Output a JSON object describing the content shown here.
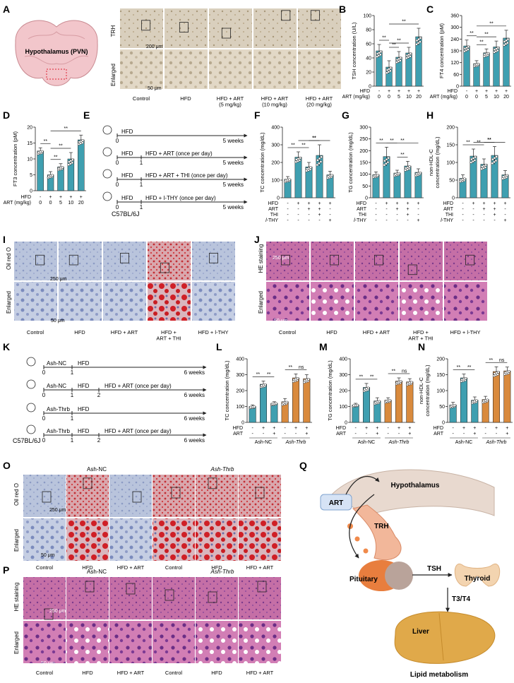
{
  "colors": {
    "teal": "#3f9fb0",
    "orange": "#d98a3d",
    "ink": "#222222",
    "dot": "#ffffff"
  },
  "panels": {
    "A": {
      "letter": "A",
      "brain_label": "Hypothalamus (PVN)",
      "row_labels": [
        "TRH",
        "Enlarged"
      ],
      "scale_top": "200 μm",
      "scale_bottom": "50 μm",
      "groups": [
        "Control",
        "HFD",
        "HFD + ART\n(5 mg/kg)",
        "HFD + ART\n(10 mg/kg)",
        "HFD + ART\n(20 mg/kg)"
      ]
    },
    "E": {
      "letter": "E",
      "strain": "C57BL/6J",
      "rows": [
        {
          "label": "HFD",
          "start": "0",
          "mid": "",
          "end": "5 weeks"
        },
        {
          "label": "HFD + ART (once per day)",
          "pre": "HFD",
          "start": "0",
          "mid": "1",
          "end": "5 weeks"
        },
        {
          "label": "HFD + ART + THI (once per day)",
          "pre": "HFD",
          "start": "0",
          "mid": "1",
          "end": "5 weeks"
        },
        {
          "label": "HFD + l-THY (once per day)",
          "pre": "HFD",
          "start": "0",
          "mid": "1",
          "end": "5 weeks"
        }
      ]
    },
    "I": {
      "letter": "I",
      "row_labels": [
        "Oil red O",
        "Enlarged"
      ],
      "scale_top": "250 μm",
      "scale_bottom": "50 μm",
      "groups": [
        "Control",
        "HFD",
        "HFD + ART",
        "HFD +\nART + THI",
        "HFD + l-THY"
      ]
    },
    "J": {
      "letter": "J",
      "row_labels": [
        "HE staining",
        "Enlarged"
      ],
      "scale_top": "250 μm",
      "scale_bottom": "50 μm",
      "groups": [
        "Control",
        "HFD",
        "HFD + ART",
        "HFD +\nART + THI",
        "HFD + l-THY"
      ]
    },
    "K": {
      "letter": "K",
      "strain": "C57BL/6J",
      "rows": [
        {
          "pre": "Ash-NC",
          "label": "HFD",
          "start": "0",
          "mid": "1",
          "mid2": "",
          "end": "6 weeks"
        },
        {
          "pre": "Ash-NC",
          "label": "HFD + ART (once per day)",
          "mid_label": "HFD",
          "start": "0",
          "mid": "1",
          "mid2": "2",
          "end": "6 weeks"
        },
        {
          "pre": "Ash-Thrb",
          "label": "HFD",
          "start": "0",
          "mid": "1",
          "mid2": "",
          "end": "6 weeks"
        },
        {
          "pre": "Ash-Thrb",
          "label": "HFD + ART (once per day)",
          "mid_label": "HFD",
          "start": "0",
          "mid": "1",
          "mid2": "2",
          "end": "6 weeks"
        }
      ]
    },
    "O": {
      "letter": "O",
      "group_headers": [
        "Ash-NC",
        "Ash-Thrb"
      ],
      "row_labels": [
        "Oil red O",
        "Enlarged"
      ],
      "scale_top": "250 μm",
      "scale_bottom": "50 μm",
      "groups": [
        "Control",
        "HFD",
        "HFD + ART",
        "Control",
        "HFD",
        "HFD + ART"
      ]
    },
    "P": {
      "letter": "P",
      "group_headers": [
        "Ash-NC",
        "Ash-Thrb"
      ],
      "row_labels": [
        "HE staining",
        "Enlarged"
      ],
      "scale_top": "250 μm",
      "scale_bottom": "50 μm",
      "groups": [
        "Control",
        "HFD",
        "HFD + ART",
        "Control",
        "HFD",
        "HFD + ART"
      ]
    },
    "Q": {
      "letter": "Q",
      "labels": {
        "art": "ART",
        "hypothalamus": "Hypothalamus",
        "trh": "TRH",
        "pituitary": "Pituitary",
        "tsh": "TSH",
        "thyroid": "Thyroid",
        "t3t4": "T3/T4",
        "liver": "Liver",
        "lipid": "Lipid metabolism"
      }
    }
  },
  "chart_data": [
    {
      "id": "B",
      "type": "bar",
      "ylabel": "TSH concentration (U/L)",
      "ylim": [
        0,
        100
      ],
      "yticks": [
        0,
        20,
        40,
        60,
        80,
        100
      ],
      "values": [
        50,
        27,
        41,
        47,
        70
      ],
      "errors": [
        9,
        9,
        8,
        8,
        12
      ],
      "row_labels": [
        "HFD",
        "ART (mg/kg)"
      ],
      "rows": [
        [
          "-",
          "+",
          "+",
          "+",
          "+"
        ],
        [
          "0",
          "0",
          "5",
          "10",
          "20"
        ]
      ],
      "sig": [
        {
          "a": 0,
          "b": 1,
          "t": "**"
        },
        {
          "a": 1,
          "b": 2,
          "t": "**"
        },
        {
          "a": 1,
          "b": 3,
          "t": "**"
        },
        {
          "a": 1,
          "b": 4,
          "t": "**"
        }
      ]
    },
    {
      "id": "C",
      "type": "bar",
      "ylabel": "FT4 concentration (pM)",
      "ylim": [
        0,
        360
      ],
      "yticks": [
        0,
        60,
        120,
        180,
        240,
        300,
        360
      ],
      "values": [
        205,
        115,
        170,
        200,
        245
      ],
      "errors": [
        30,
        15,
        20,
        30,
        40
      ],
      "row_labels": [
        "HFD",
        "ART (mg/kg)"
      ],
      "rows": [
        [
          "-",
          "+",
          "+",
          "+",
          "+"
        ],
        [
          "0",
          "0",
          "5",
          "10",
          "20"
        ]
      ],
      "sig": [
        {
          "a": 0,
          "b": 1,
          "t": "**"
        },
        {
          "a": 1,
          "b": 2,
          "t": "**"
        },
        {
          "a": 1,
          "b": 3,
          "t": "**"
        },
        {
          "a": 1,
          "b": 4,
          "t": "**"
        }
      ]
    },
    {
      "id": "D",
      "type": "bar",
      "ylabel": "FT3 concentration (pM)",
      "ylim": [
        0,
        20
      ],
      "yticks": [
        0,
        5,
        10,
        15,
        20
      ],
      "values": [
        12.5,
        5,
        7.5,
        10,
        16
      ],
      "errors": [
        1,
        1,
        1,
        2,
        1.5
      ],
      "row_labels": [
        "HFD",
        "ART (mg/kg)"
      ],
      "rows": [
        [
          "-",
          "+",
          "+",
          "+",
          "+"
        ],
        [
          "0",
          "0",
          "5",
          "10",
          "20"
        ]
      ],
      "sig": [
        {
          "a": 0,
          "b": 1,
          "t": "**"
        },
        {
          "a": 1,
          "b": 2,
          "t": "**"
        },
        {
          "a": 1,
          "b": 3,
          "t": "**"
        },
        {
          "a": 1,
          "b": 4,
          "t": "**"
        }
      ]
    },
    {
      "id": "F",
      "type": "bar",
      "ylabel": "TC concentration (mg/dL)",
      "ylim": [
        0,
        400
      ],
      "yticks": [
        0,
        100,
        200,
        300,
        400
      ],
      "values": [
        105,
        230,
        175,
        240,
        130
      ],
      "errors": [
        15,
        30,
        25,
        60,
        20
      ],
      "row_labels": [
        "HFD",
        "ART",
        "THI",
        "l-THY"
      ],
      "rows": [
        [
          "-",
          "+",
          "+",
          "+",
          "+"
        ],
        [
          "-",
          "-",
          "+",
          "+",
          "-"
        ],
        [
          "-",
          "-",
          "-",
          "+",
          "-"
        ],
        [
          "-",
          "-",
          "-",
          "-",
          "+"
        ]
      ],
      "sig": [
        {
          "a": 0,
          "b": 1,
          "t": "**"
        },
        {
          "a": 1,
          "b": 2,
          "t": "**"
        },
        {
          "a": 2,
          "b": 3,
          "t": "**"
        },
        {
          "a": 1,
          "b": 4,
          "t": "**"
        }
      ]
    },
    {
      "id": "G",
      "type": "bar",
      "ylabel": "TG concentration (mg/dL)",
      "ylim": [
        0,
        300
      ],
      "yticks": [
        0,
        50,
        100,
        150,
        200,
        250,
        300
      ],
      "values": [
        98,
        175,
        105,
        135,
        108
      ],
      "errors": [
        12,
        40,
        12,
        20,
        15
      ],
      "row_labels": [
        "HFD",
        "ART",
        "THI",
        "l-THY"
      ],
      "rows": [
        [
          "-",
          "+",
          "+",
          "+",
          "+"
        ],
        [
          "-",
          "-",
          "+",
          "+",
          "-"
        ],
        [
          "-",
          "-",
          "-",
          "+",
          "-"
        ],
        [
          "-",
          "-",
          "-",
          "-",
          "+"
        ]
      ],
      "sig": [
        {
          "a": 0,
          "b": 1,
          "t": "**"
        },
        {
          "a": 1,
          "b": 2,
          "t": "**"
        },
        {
          "a": 2,
          "b": 3,
          "t": "**"
        },
        {
          "a": 1,
          "b": 4,
          "t": "**"
        }
      ]
    },
    {
      "id": "H",
      "type": "bar",
      "ylabel": "non-HDL-C\nconcentration (mg/dL)",
      "ylim": [
        0,
        200
      ],
      "yticks": [
        0,
        50,
        100,
        150,
        200
      ],
      "values": [
        55,
        118,
        95,
        120,
        65
      ],
      "errors": [
        10,
        20,
        15,
        25,
        12
      ],
      "row_labels": [
        "HFD",
        "ART",
        "THI",
        "l-THY"
      ],
      "rows": [
        [
          "-",
          "+",
          "+",
          "+",
          "+"
        ],
        [
          "-",
          "-",
          "+",
          "+",
          "-"
        ],
        [
          "-",
          "-",
          "-",
          "+",
          "-"
        ],
        [
          "-",
          "-",
          "-",
          "-",
          "+"
        ]
      ],
      "sig": [
        {
          "a": 0,
          "b": 1,
          "t": "**"
        },
        {
          "a": 1,
          "b": 2,
          "t": "**"
        },
        {
          "a": 2,
          "b": 3,
          "t": "**"
        },
        {
          "a": 1,
          "b": 4,
          "t": "**"
        }
      ]
    },
    {
      "id": "L",
      "type": "bar",
      "ylabel": "TC concentration (mg/dL)",
      "ylim": [
        0,
        400
      ],
      "yticks": [
        0,
        100,
        200,
        300,
        400
      ],
      "values": [
        100,
        240,
        120,
        130,
        280,
        275
      ],
      "errors": [
        10,
        20,
        10,
        20,
        25,
        25
      ],
      "row_labels": [
        "HFD",
        "ART"
      ],
      "rows": [
        [
          "-",
          "+",
          "+",
          "-",
          "+",
          "+"
        ],
        [
          "-",
          "-",
          "+",
          "-",
          "-",
          "+"
        ]
      ],
      "groups": [
        "Ash-NC",
        "Ash-Thrb"
      ],
      "sig": [
        {
          "a": 0,
          "b": 1,
          "t": "**"
        },
        {
          "a": 1,
          "b": 2,
          "t": "**"
        },
        {
          "a": 3,
          "b": 4,
          "t": "**"
        },
        {
          "a": 4,
          "b": 5,
          "t": "ns"
        }
      ]
    },
    {
      "id": "M",
      "type": "bar",
      "ylabel": "TG concentration (mg/dL)",
      "ylim": [
        0,
        400
      ],
      "yticks": [
        0,
        100,
        200,
        300,
        400
      ],
      "values": [
        110,
        220,
        135,
        140,
        260,
        255
      ],
      "errors": [
        10,
        25,
        20,
        15,
        20,
        20
      ],
      "row_labels": [
        "HFD",
        "ART"
      ],
      "rows": [
        [
          "-",
          "+",
          "+",
          "-",
          "+",
          "+"
        ],
        [
          "-",
          "-",
          "+",
          "-",
          "-",
          "+"
        ]
      ],
      "groups": [
        "Ash-NC",
        "Ash-Thrb"
      ],
      "sig": [
        {
          "a": 0,
          "b": 1,
          "t": "**"
        },
        {
          "a": 1,
          "b": 2,
          "t": "**"
        },
        {
          "a": 3,
          "b": 4,
          "t": "**"
        },
        {
          "a": 4,
          "b": 5,
          "t": "ns"
        }
      ]
    },
    {
      "id": "N",
      "type": "bar",
      "ylabel": "non-HDL-C\nconcentration (mg/dL)",
      "ylim": [
        0,
        200
      ],
      "yticks": [
        0,
        50,
        100,
        150,
        200
      ],
      "values": [
        55,
        140,
        70,
        72,
        160,
        162
      ],
      "errors": [
        8,
        12,
        10,
        10,
        15,
        12
      ],
      "row_labels": [
        "HFD",
        "ART"
      ],
      "rows": [
        [
          "-",
          "+",
          "+",
          "-",
          "+",
          "+"
        ],
        [
          "-",
          "-",
          "+",
          "-",
          "-",
          "+"
        ]
      ],
      "groups": [
        "Ash-NC",
        "Ash-Thrb"
      ],
      "sig": [
        {
          "a": 0,
          "b": 1,
          "t": "**"
        },
        {
          "a": 1,
          "b": 2,
          "t": "**"
        },
        {
          "a": 3,
          "b": 4,
          "t": "**"
        },
        {
          "a": 4,
          "b": 5,
          "t": "ns"
        }
      ]
    }
  ]
}
